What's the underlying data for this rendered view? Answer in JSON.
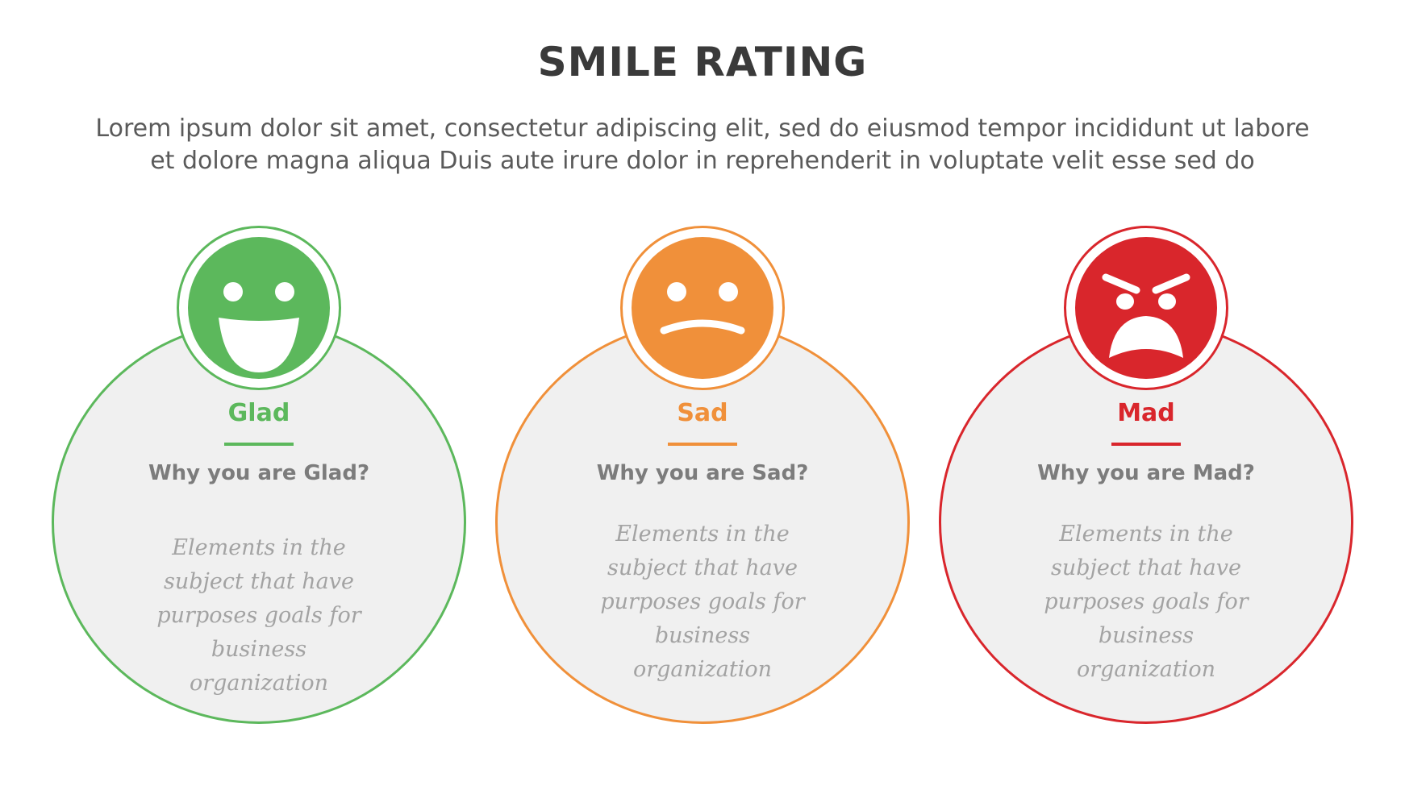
{
  "header": {
    "title": "SMILE RATING",
    "subtitle_lines": [
      "Lorem ipsum dolor sit amet, consectetur adipiscing elit, sed do eiusmod tempor incididunt ut labore",
      "et dolore magna aliqua Duis aute irure dolor in reprehenderit in voluptate velit esse sed do"
    ]
  },
  "ratings": [
    {
      "label": "Glad",
      "question": "Why you are Glad?",
      "description": "Elements in the subject that have purposes goals for business organization",
      "color": "#5cb85c",
      "icon": "happy-face-icon"
    },
    {
      "label": "Sad",
      "question": "Why you are Sad?",
      "description": "Elements in the subject that have purposes goals for business organization",
      "color": "#f0903a",
      "icon": "sad-face-icon"
    },
    {
      "label": "Mad",
      "question": "Why you are Mad?",
      "description": "Elements in the subject that have purposes goals for business organization",
      "color": "#d9262c",
      "icon": "angry-face-icon"
    }
  ]
}
